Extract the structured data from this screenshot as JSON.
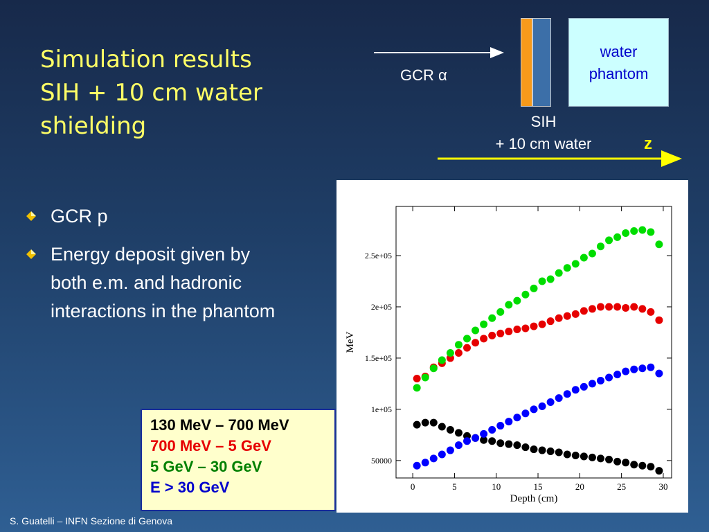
{
  "title": {
    "lines": [
      "Simulation results",
      "SIH + 10 cm water",
      "shielding"
    ]
  },
  "diagram": {
    "beam_label": "GCR α",
    "phantom_label_lines": [
      "water",
      "phantom"
    ],
    "shield_label_lines": [
      "SIH",
      "+ 10 cm water"
    ],
    "axis_label": "z",
    "colors": {
      "arrow_white": "#ffffff",
      "arrow_yellow": "#ffff00",
      "orange_layer": "#f79a1b",
      "blue_layer": "#3c6fa8",
      "phantom_fill": "#ccffff"
    }
  },
  "bullets": [
    {
      "text": "GCR p",
      "icon": "diamond-bullet-icon"
    },
    {
      "text_lines": [
        "Energy deposit given by",
        "both e.m. and hadronic",
        "interactions in the phantom"
      ],
      "icon": "diamond-bullet-icon"
    }
  ],
  "legend": [
    {
      "text": "130 MeV – 700 MeV",
      "color": "#000000"
    },
    {
      "text": "700 MeV – 5 GeV",
      "color": "#e60000"
    },
    {
      "text": "5 GeV – 30 GeV",
      "color": "#008000"
    },
    {
      "text": "E > 30 GeV",
      "color": "#0000cc"
    }
  ],
  "footer": "S. Guatelli – INFN Sezione di Genova",
  "chart_data": {
    "type": "scatter",
    "xlabel": "Depth (cm)",
    "ylabel": "MeV",
    "xlim": [
      -2,
      31
    ],
    "ylim": [
      33000,
      298000
    ],
    "xticks": [
      0,
      5,
      10,
      15,
      20,
      25,
      30
    ],
    "xtick_labels": [
      "0",
      "5",
      "10",
      "15",
      "20",
      "25",
      "30"
    ],
    "yticks": [
      50000,
      100000,
      150000,
      200000,
      250000
    ],
    "ytick_labels": [
      "50000",
      "1e+05",
      "1.5e+05",
      "2e+05",
      "2.5e+05"
    ],
    "x": [
      0.5,
      1.5,
      2.5,
      3.5,
      4.5,
      5.5,
      6.5,
      7.5,
      8.5,
      9.5,
      10.5,
      11.5,
      12.5,
      13.5,
      14.5,
      15.5,
      16.5,
      17.5,
      18.5,
      19.5,
      20.5,
      21.5,
      22.5,
      23.5,
      24.5,
      25.5,
      26.5,
      27.5,
      28.5,
      29.5
    ],
    "series": [
      {
        "color": "#000000",
        "values": [
          85000,
          87000,
          87000,
          83000,
          80000,
          77000,
          74000,
          72000,
          70000,
          69000,
          67000,
          66000,
          65000,
          63000,
          61000,
          60000,
          59000,
          58000,
          56000,
          55000,
          54000,
          53000,
          52000,
          51000,
          49000,
          48000,
          46000,
          45000,
          44000,
          40000
        ]
      },
      {
        "color": "#e60000",
        "values": [
          130000,
          132000,
          141000,
          145000,
          150000,
          155000,
          160000,
          165000,
          169000,
          172000,
          174000,
          176000,
          178000,
          179000,
          181000,
          183000,
          186000,
          189000,
          191000,
          193000,
          196000,
          198000,
          200000,
          200000,
          200000,
          199000,
          200000,
          198000,
          195000,
          187000
        ]
      },
      {
        "color": "#00dd00",
        "values": [
          121000,
          131000,
          140000,
          148000,
          155000,
          163000,
          169000,
          177000,
          183000,
          189000,
          195000,
          202000,
          206000,
          212000,
          218000,
          225000,
          227000,
          233000,
          238000,
          242000,
          248000,
          252000,
          259000,
          265000,
          268000,
          272000,
          274000,
          275000,
          273000,
          261000
        ]
      },
      {
        "color": "#0000ff",
        "values": [
          45000,
          48000,
          52000,
          56000,
          60000,
          65000,
          69000,
          72000,
          76000,
          80000,
          84000,
          88000,
          92000,
          96000,
          100000,
          103000,
          107000,
          111000,
          115000,
          119000,
          122000,
          125000,
          128000,
          131000,
          134000,
          137000,
          139000,
          140000,
          141000,
          135000
        ]
      }
    ]
  }
}
